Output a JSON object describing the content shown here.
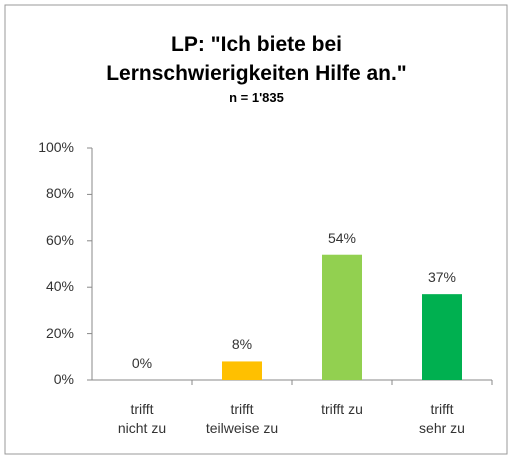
{
  "chart_data": {
    "type": "bar",
    "title": "LP: \"Ich biete bei\nLernschwierigkeiten Hilfe an.\"",
    "subtitle": "n = 1'835",
    "categories": [
      "trifft\nnicht zu",
      "trifft\nteilweise zu",
      "trifft zu",
      "trifft\nsehr zu"
    ],
    "values": [
      0,
      8,
      54,
      37
    ],
    "value_labels": [
      "0%",
      "8%",
      "54%",
      "37%"
    ],
    "colors": [
      "#ff0000",
      "#ffc000",
      "#92d050",
      "#00b050"
    ],
    "ylim": [
      0,
      100
    ],
    "yticks": [
      {
        "value": 0,
        "label": "0%"
      },
      {
        "value": 20,
        "label": "20%"
      },
      {
        "value": 40,
        "label": "40%"
      },
      {
        "value": 60,
        "label": "60%"
      },
      {
        "value": 80,
        "label": "80%"
      },
      {
        "value": 100,
        "label": "100%"
      }
    ],
    "grid": false
  }
}
